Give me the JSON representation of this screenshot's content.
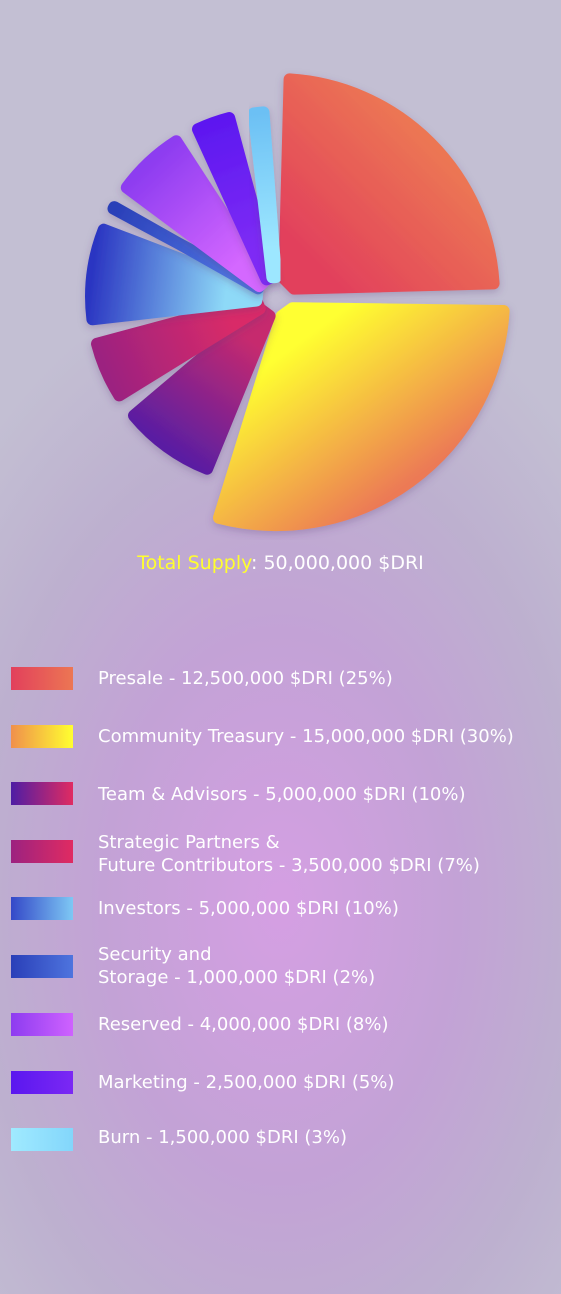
{
  "chart_data": {
    "type": "pie",
    "title": "Total Supply: 50,000,000 $DRI",
    "total_label": "Total Supply",
    "total_value": "50,000,000 $DRI",
    "slices": [
      {
        "label": "Presale - 12,500,000 $DRI (25%)",
        "value": 25,
        "colors": [
          "#e2405c",
          "#ec7653"
        ]
      },
      {
        "label": "Community Treasury - 15,000,000 $DRI (30%)",
        "value": 30,
        "colors": [
          "#ffff30",
          "#ec7a55"
        ]
      },
      {
        "label": "Team & Advisors - 5,000,000 $DRI (10%)",
        "value": 10,
        "colors": [
          "#c62a6e",
          "#5a1ea2"
        ]
      },
      {
        "label": "Strategic Partners &\nFuture Contributors -  3,500,000 $DRI (7%)",
        "value": 7,
        "colors": [
          "#d92b68",
          "#9c2280"
        ]
      },
      {
        "label": "Investors - 5,000,000 $DRI (10%)",
        "value": 10,
        "colors": [
          "#8ed9f7",
          "#2b36c2"
        ]
      },
      {
        "label": "Security and\nStorage - 1,000,000 $DRI (2%)",
        "value": 2,
        "colors": [
          "#4d73e0",
          "#2a3fb8"
        ]
      },
      {
        "label": "Reserved - 4,000,000 $DRI (8%)",
        "value": 8,
        "colors": [
          "#d467ff",
          "#8d3cf0"
        ]
      },
      {
        "label": "Marketing - 2,500,000 $DRI (5%)",
        "value": 5,
        "colors": [
          "#7e2cf5",
          "#5d18f0"
        ]
      },
      {
        "label": "Burn - 1,500,000 $DRI (3%)",
        "value": 3,
        "colors": [
          "#9de7ff",
          "#6cc0f4"
        ]
      }
    ]
  }
}
